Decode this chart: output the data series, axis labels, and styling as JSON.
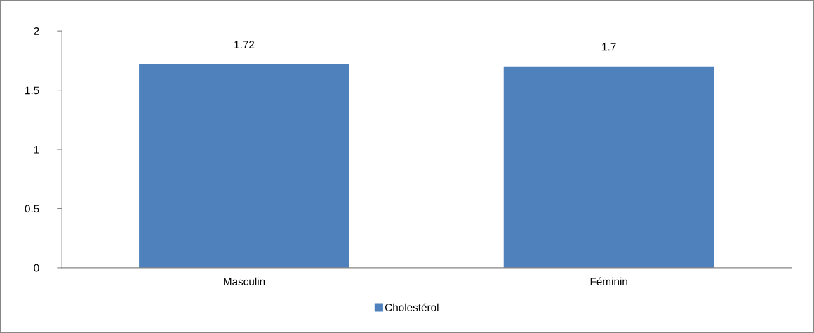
{
  "chart_data": {
    "type": "bar",
    "categories": [
      "Masculin",
      "Féminin"
    ],
    "series": [
      {
        "name": "Cholestérol",
        "color": "#4f81bd",
        "values": [
          1.72,
          1.7
        ]
      }
    ],
    "ylim": [
      0,
      2
    ],
    "yticks": [
      0,
      0.5,
      1,
      1.5,
      2
    ],
    "data_labels": true,
    "grid": false,
    "legend": "bottom"
  }
}
